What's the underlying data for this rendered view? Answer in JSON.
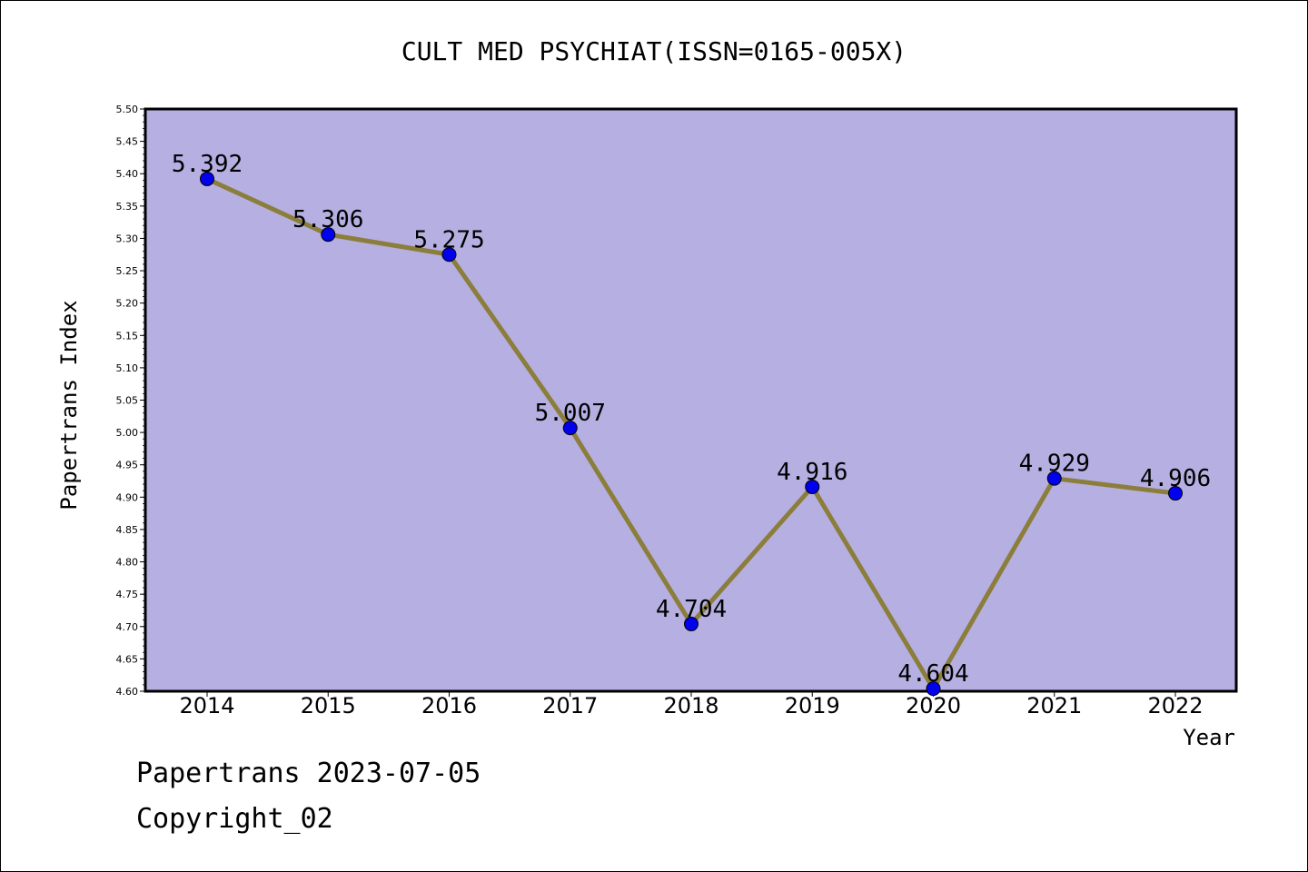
{
  "chart_data": {
    "type": "line",
    "title": "CULT MED PSYCHIAT(ISSN=0165-005X)",
    "xlabel": "Year",
    "ylabel": "Papertrans Index",
    "categories": [
      "2014",
      "2015",
      "2016",
      "2017",
      "2018",
      "2019",
      "2020",
      "2021",
      "2022"
    ],
    "series": [
      {
        "values": [
          5.392,
          5.306,
          5.275,
          5.007,
          4.704,
          4.916,
          4.604,
          4.929,
          4.906
        ],
        "data_labels": [
          "5.392",
          "5.306",
          "5.275",
          "5.007",
          "4.704",
          "4.916",
          "4.604",
          "4.929",
          "4.906"
        ]
      }
    ],
    "ylim": [
      4.6,
      5.5
    ],
    "yticks": [
      "4.60",
      "4.65",
      "4.70",
      "4.75",
      "4.80",
      "4.85",
      "4.90",
      "4.95",
      "5.00",
      "5.05",
      "5.10",
      "5.15",
      "5.20",
      "5.25",
      "5.30",
      "5.35",
      "5.40",
      "5.45",
      "5.50"
    ],
    "grid": false,
    "colors": {
      "plot_background": "#b5afe2",
      "line": "#8b7d3a",
      "marker": "#0000ee"
    }
  },
  "footer": {
    "line1": "Papertrans 2023-07-05",
    "line2": "Copyright_02"
  }
}
